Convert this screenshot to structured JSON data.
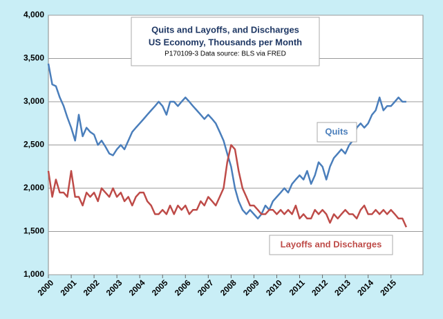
{
  "chart_data": {
    "type": "line",
    "title": "Quits and Layoffs, and Discharges",
    "subtitle": "US Economy, Thousands per Month",
    "note": "P170109-3 Data source: BLS via FRED",
    "x": [
      2000,
      2000.17,
      2000.33,
      2000.5,
      2000.67,
      2000.83,
      2001,
      2001.17,
      2001.33,
      2001.5,
      2001.67,
      2001.83,
      2002,
      2002.17,
      2002.33,
      2002.5,
      2002.67,
      2002.83,
      2003,
      2003.17,
      2003.33,
      2003.5,
      2003.67,
      2003.83,
      2004,
      2004.17,
      2004.33,
      2004.5,
      2004.67,
      2004.83,
      2005,
      2005.17,
      2005.33,
      2005.5,
      2005.67,
      2005.83,
      2006,
      2006.17,
      2006.33,
      2006.5,
      2006.67,
      2006.83,
      2007,
      2007.17,
      2007.33,
      2007.5,
      2007.67,
      2007.83,
      2008,
      2008.17,
      2008.33,
      2008.5,
      2008.67,
      2008.83,
      2009,
      2009.17,
      2009.33,
      2009.5,
      2009.67,
      2009.83,
      2010,
      2010.17,
      2010.33,
      2010.5,
      2010.67,
      2010.83,
      2011,
      2011.17,
      2011.33,
      2011.5,
      2011.67,
      2011.83,
      2012,
      2012.17,
      2012.33,
      2012.5,
      2012.67,
      2012.83,
      2013,
      2013.17,
      2013.33,
      2013.5,
      2013.67,
      2013.83,
      2014,
      2014.17,
      2014.33,
      2014.5,
      2014.67,
      2014.83,
      2015,
      2015.17,
      2015.33,
      2015.5,
      2015.67
    ],
    "series": [
      {
        "name": "Quits",
        "color": "#4a7ebb",
        "values": [
          3440,
          3200,
          3180,
          3050,
          2950,
          2820,
          2700,
          2550,
          2850,
          2600,
          2700,
          2650,
          2620,
          2500,
          2550,
          2480,
          2400,
          2380,
          2450,
          2500,
          2450,
          2550,
          2650,
          2700,
          2750,
          2800,
          2850,
          2900,
          2950,
          3000,
          2950,
          2850,
          3000,
          3000,
          2950,
          3000,
          3050,
          3000,
          2950,
          2900,
          2850,
          2800,
          2850,
          2800,
          2750,
          2650,
          2550,
          2400,
          2250,
          2000,
          1850,
          1750,
          1700,
          1750,
          1700,
          1650,
          1700,
          1800,
          1750,
          1850,
          1900,
          1950,
          2000,
          1950,
          2050,
          2100,
          2150,
          2100,
          2200,
          2050,
          2150,
          2300,
          2250,
          2100,
          2250,
          2350,
          2400,
          2450,
          2400,
          2500,
          2550,
          2700,
          2750,
          2700,
          2750,
          2850,
          2900,
          3050,
          2900,
          2950,
          2950,
          3000,
          3050,
          3000,
          3000
        ]
      },
      {
        "name": "Layoffs and Discharges",
        "color": "#be4b48",
        "values": [
          2200,
          1900,
          2100,
          1950,
          1950,
          1900,
          2200,
          1900,
          1900,
          1800,
          1950,
          1900,
          1950,
          1850,
          2000,
          1950,
          1900,
          2000,
          1900,
          1950,
          1850,
          1900,
          1800,
          1900,
          1950,
          1950,
          1850,
          1800,
          1700,
          1700,
          1750,
          1700,
          1800,
          1700,
          1800,
          1750,
          1800,
          1700,
          1750,
          1750,
          1850,
          1800,
          1900,
          1850,
          1800,
          1900,
          2000,
          2300,
          2500,
          2450,
          2200,
          2000,
          1900,
          1800,
          1800,
          1750,
          1700,
          1700,
          1750,
          1750,
          1700,
          1750,
          1700,
          1750,
          1700,
          1800,
          1650,
          1700,
          1650,
          1650,
          1750,
          1700,
          1750,
          1700,
          1600,
          1700,
          1650,
          1700,
          1750,
          1700,
          1700,
          1650,
          1750,
          1800,
          1700,
          1700,
          1750,
          1700,
          1750,
          1700,
          1750,
          1700,
          1650,
          1650,
          1550
        ]
      }
    ],
    "xlim": [
      2000,
      2016.4
    ],
    "xticks": [
      2000,
      2001,
      2002,
      2003,
      2004,
      2005,
      2006,
      2007,
      2008,
      2009,
      2010,
      2011,
      2012,
      2013,
      2014,
      2015
    ],
    "ylim": [
      1000,
      4000
    ],
    "yticks": [
      {
        "value": 1000,
        "label": "1,000"
      },
      {
        "value": 1500,
        "label": "1,500"
      },
      {
        "value": 2000,
        "label": "2,000"
      },
      {
        "value": 2500,
        "label": "2,500"
      },
      {
        "value": 3000,
        "label": "3,000"
      },
      {
        "value": 3500,
        "label": "3,500"
      },
      {
        "value": 4000,
        "label": "4,000"
      }
    ],
    "grid": true
  }
}
